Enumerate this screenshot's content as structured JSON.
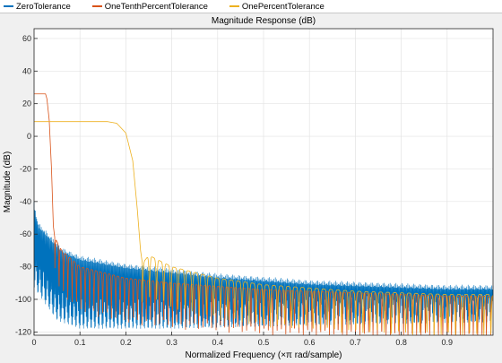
{
  "legend": {
    "items": [
      {
        "label": "ZeroTolerance",
        "color": "#0072BD"
      },
      {
        "label": "OneTenthPercentTolerance",
        "color": "#D95319"
      },
      {
        "label": "OnePercentTolerance",
        "color": "#EDB120"
      }
    ]
  },
  "chart_data": {
    "type": "line",
    "title": "Magnitude Response (dB)",
    "xlabel": "Normalized Frequency (×π rad/sample)",
    "ylabel": "Magnitude (dB)",
    "xlim": [
      0,
      1
    ],
    "ylim": [
      -122,
      66
    ],
    "xticks": [
      0,
      0.1,
      0.2,
      0.3,
      0.4,
      0.5,
      0.6,
      0.7,
      0.8,
      0.9
    ],
    "yticks": [
      -120,
      -100,
      -80,
      -60,
      -40,
      -20,
      0,
      20,
      40,
      60
    ],
    "grid": true,
    "legend_position": "top",
    "series": [
      {
        "name": "ZeroTolerance",
        "color": "#0072BD",
        "points": [
          [
            0.0,
            -40
          ],
          [
            0.005,
            -48
          ],
          [
            0.01,
            -53
          ],
          [
            0.02,
            -56
          ],
          [
            0.04,
            -62
          ],
          [
            0.06,
            -68
          ],
          [
            0.1,
            -73
          ],
          [
            0.2,
            -78
          ],
          [
            0.3,
            -81
          ],
          [
            0.4,
            -84
          ],
          [
            0.5,
            -86
          ],
          [
            0.6,
            -88
          ],
          [
            0.7,
            -89
          ],
          [
            0.8,
            -90
          ],
          [
            0.9,
            -91
          ],
          [
            1.0,
            -91
          ]
        ],
        "ripple_floor": [
          [
            0.0,
            -75
          ],
          [
            0.05,
            -95
          ],
          [
            0.1,
            -100
          ],
          [
            0.3,
            -100
          ],
          [
            0.6,
            -98
          ],
          [
            1.0,
            -96
          ]
        ]
      },
      {
        "name": "OneTenthPercentTolerance",
        "color": "#D95319",
        "points": [
          [
            0.0,
            26
          ],
          [
            0.025,
            26
          ],
          [
            0.028,
            23
          ],
          [
            0.033,
            10
          ],
          [
            0.038,
            -20
          ],
          [
            0.042,
            -55
          ],
          [
            0.045,
            -62
          ],
          [
            0.06,
            -70
          ],
          [
            0.1,
            -80
          ],
          [
            0.2,
            -87
          ],
          [
            0.3,
            -90
          ],
          [
            0.4,
            -92
          ],
          [
            0.5,
            -94
          ],
          [
            0.6,
            -95
          ],
          [
            0.7,
            -96
          ],
          [
            0.8,
            -97
          ],
          [
            0.9,
            -98
          ],
          [
            1.0,
            -98
          ]
        ]
      },
      {
        "name": "OnePercentTolerance",
        "color": "#EDB120",
        "points": [
          [
            0.0,
            9
          ],
          [
            0.16,
            9
          ],
          [
            0.18,
            8
          ],
          [
            0.2,
            2
          ],
          [
            0.215,
            -15
          ],
          [
            0.225,
            -45
          ],
          [
            0.232,
            -70
          ],
          [
            0.236,
            -78
          ],
          [
            0.25,
            -73
          ],
          [
            0.3,
            -80
          ],
          [
            0.4,
            -87
          ],
          [
            0.5,
            -91
          ],
          [
            0.6,
            -93
          ],
          [
            0.7,
            -95
          ],
          [
            0.8,
            -96
          ],
          [
            0.9,
            -97
          ],
          [
            1.0,
            -97
          ]
        ]
      }
    ]
  }
}
